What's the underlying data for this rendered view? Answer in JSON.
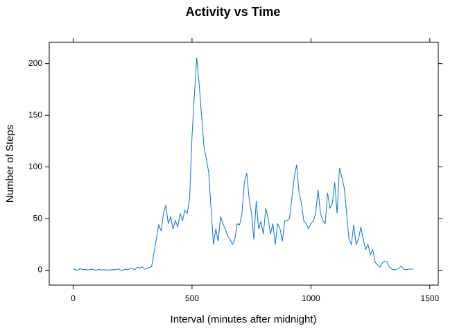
{
  "chart_data": {
    "type": "line",
    "title": "Activity vs Time",
    "x_label": "Interval (minutes after midnight)",
    "y_label": "Number of Steps",
    "x": [
      0,
      10,
      20,
      30,
      40,
      50,
      60,
      70,
      80,
      90,
      100,
      110,
      120,
      130,
      140,
      150,
      160,
      170,
      180,
      190,
      200,
      210,
      220,
      230,
      240,
      250,
      260,
      270,
      280,
      290,
      300,
      310,
      320,
      330,
      340,
      350,
      360,
      370,
      380,
      390,
      400,
      410,
      420,
      430,
      440,
      450,
      460,
      470,
      480,
      490,
      500,
      510,
      520,
      530,
      540,
      550,
      560,
      570,
      580,
      590,
      600,
      610,
      620,
      630,
      640,
      650,
      660,
      670,
      680,
      690,
      700,
      710,
      720,
      730,
      740,
      750,
      760,
      770,
      780,
      790,
      800,
      810,
      820,
      830,
      840,
      850,
      860,
      870,
      880,
      890,
      900,
      910,
      920,
      930,
      940,
      950,
      960,
      970,
      980,
      990,
      1000,
      1010,
      1020,
      1030,
      1040,
      1050,
      1060,
      1070,
      1080,
      1090,
      1100,
      1110,
      1120,
      1130,
      1140,
      1150,
      1160,
      1170,
      1180,
      1190,
      1200,
      1210,
      1220,
      1230,
      1240,
      1250,
      1260,
      1270,
      1280,
      1290,
      1300,
      1310,
      1320,
      1330,
      1340,
      1350,
      1360,
      1370,
      1380,
      1390,
      1400,
      1410,
      1420,
      1430
    ],
    "series": [
      {
        "name": "steps",
        "color": "#0072e6",
        "values": [
          1.7,
          0.3,
          0.1,
          1.5,
          0.5,
          0.8,
          0.3,
          0.5,
          0.9,
          0.2,
          0.3,
          0.8,
          0.1,
          0.5,
          0.2,
          0.3,
          0.4,
          0.6,
          0.5,
          1.4,
          0,
          0.2,
          1.2,
          0.2,
          2.2,
          1.5,
          0.5,
          3,
          2,
          3.5,
          1,
          2,
          2.5,
          3.5,
          17,
          30,
          44,
          38,
          55,
          63,
          45,
          52,
          40,
          48,
          42,
          55,
          48,
          58,
          55,
          70,
          130,
          170,
          206,
          180,
          150,
          120,
          108,
          95,
          60,
          25,
          40,
          28,
          52,
          45,
          40,
          33,
          30,
          25,
          30,
          45,
          44,
          55,
          85,
          94,
          70,
          55,
          30,
          67,
          40,
          47,
          35,
          60,
          50,
          35,
          45,
          25,
          45,
          40,
          28,
          48,
          48,
          50,
          70,
          90,
          102,
          75,
          65,
          48,
          45,
          40,
          45,
          48,
          55,
          78,
          55,
          48,
          45,
          75,
          60,
          65,
          85,
          55,
          99,
          90,
          80,
          55,
          30,
          25,
          44,
          25,
          30,
          42,
          30,
          20,
          25,
          15,
          20,
          8,
          5,
          3,
          7,
          9,
          8,
          3,
          1,
          0.5,
          1,
          2,
          4,
          1,
          0.5,
          1,
          1,
          1
        ]
      }
    ],
    "xlim": [
      -100.45,
      1535.45
    ],
    "xticks": [
      0,
      500,
      1000,
      1500
    ],
    "ylim": [
      -14.4,
      220.6
    ],
    "yticks": [
      0,
      50,
      100,
      150,
      200
    ]
  }
}
